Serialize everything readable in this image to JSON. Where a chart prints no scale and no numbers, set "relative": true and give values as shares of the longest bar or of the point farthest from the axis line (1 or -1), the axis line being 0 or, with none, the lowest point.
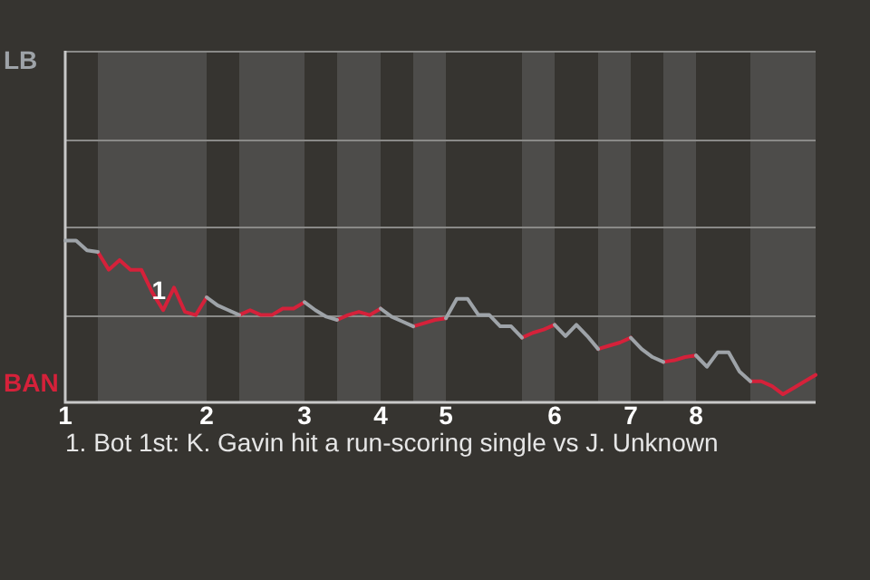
{
  "chart_data": {
    "type": "line",
    "categories": [
      "1",
      null,
      null,
      null,
      null,
      null,
      null,
      null,
      null,
      null,
      null,
      null,
      null,
      "2",
      null,
      null,
      null,
      null,
      null,
      null,
      null,
      null,
      "3",
      null,
      null,
      null,
      null,
      null,
      null,
      "4",
      null,
      null,
      null,
      null,
      null,
      "5",
      null,
      null,
      null,
      null,
      null,
      null,
      null,
      null,
      null,
      "6",
      null,
      null,
      null,
      null,
      null,
      null,
      "7",
      null,
      null,
      null,
      null,
      null,
      "8",
      null,
      null,
      null,
      null,
      null,
      null,
      null,
      null,
      null,
      null,
      null
    ],
    "relative": true,
    "series": [
      {
        "color": "#9ea3a8",
        "values": [
          1,
          1,
          0.94,
          0.93,
          null,
          null,
          null,
          null,
          null,
          null,
          null,
          null,
          null,
          0.65,
          0.6,
          0.57,
          0.54,
          null,
          null,
          null,
          null,
          null,
          0.62,
          0.57,
          0.53,
          0.51,
          null,
          null,
          null,
          0.58,
          0.53,
          0.5,
          0.47,
          null,
          null,
          0.52,
          0.64,
          0.64,
          0.54,
          0.54,
          0.47,
          0.47,
          0.4,
          null,
          null,
          0.48,
          0.41,
          0.48,
          0.41,
          0.33,
          null,
          null,
          0.4,
          0.33,
          0.28,
          0.25,
          null,
          null,
          0.29,
          0.22,
          0.31,
          0.31,
          0.19,
          0.13,
          null,
          null,
          null,
          null,
          null,
          null
        ]
      },
      {
        "color": "#d5213a",
        "values": [
          null,
          null,
          null,
          0.93,
          0.82,
          0.88,
          0.82,
          0.82,
          0.68,
          0.57,
          0.71,
          0.56,
          0.54,
          0.65,
          null,
          null,
          0.54,
          0.57,
          0.54,
          0.54,
          0.58,
          0.58,
          0.62,
          null,
          null,
          0.51,
          0.54,
          0.56,
          0.54,
          0.58,
          null,
          null,
          0.47,
          0.49,
          0.51,
          0.52,
          null,
          null,
          null,
          null,
          null,
          null,
          0.4,
          0.43,
          0.45,
          0.48,
          null,
          null,
          null,
          0.33,
          0.35,
          0.37,
          0.4,
          null,
          null,
          0.25,
          0.26,
          0.28,
          0.29,
          null,
          null,
          null,
          null,
          0.13,
          0.13,
          0.1,
          0.05,
          0.09,
          0.13,
          0.17
        ]
      }
    ],
    "ref_lines": [
      {
        "axis": "y",
        "value": 0.543,
        "color": "#8a8a88"
      },
      {
        "axis": "y",
        "value": 1.087,
        "color": "#8a8a88"
      },
      {
        "axis": "y",
        "value": 1.63,
        "color": "#8a8a88"
      },
      {
        "axis": "y",
        "value": 2.174,
        "color": "#8a8a88"
      }
    ],
    "annotations": [
      "LB",
      "BAN",
      "1",
      "1. Bot 1st: K. Gavin hit a run-scoring single vs J. Unknown"
    ],
    "marker": "none",
    "line_style": "solid"
  }
}
